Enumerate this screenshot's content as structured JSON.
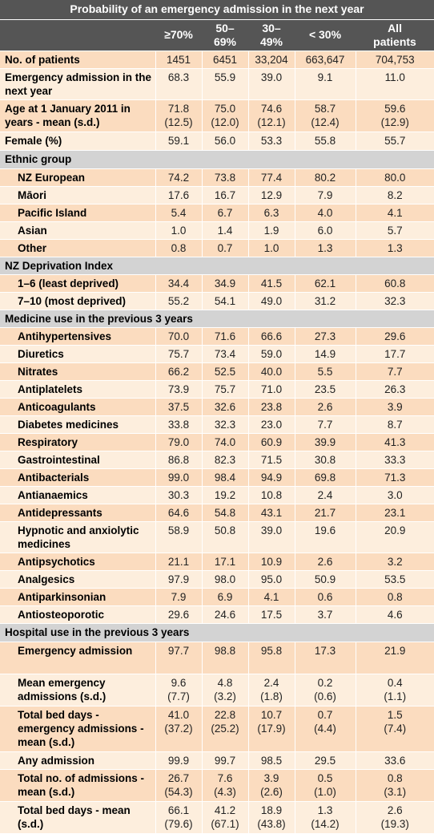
{
  "title": "Probability of an emergency admission in the next year",
  "columns": [
    "≥70%",
    "50–\n69%",
    "30–\n49%",
    "< 30%",
    "All\npatients"
  ],
  "rows": [
    {
      "type": "main",
      "label": "No. of patients",
      "values": [
        "1451",
        "6451",
        "33,204",
        "663,647",
        "704,753"
      ],
      "h": 22
    },
    {
      "type": "main",
      "label": "Emergency admission in the next year",
      "values": [
        "68.3",
        "55.9",
        "39.0",
        "9.1",
        "11.0"
      ],
      "h": 39
    },
    {
      "type": "main",
      "label": "Age at 1 January 2011 in years - mean (s.d.)",
      "values": [
        "71.8\n(12.5)",
        "75.0\n(12.0)",
        "74.6\n(12.1)",
        "58.7\n(12.4)",
        "59.6\n(12.9)"
      ],
      "h": 40
    },
    {
      "type": "main",
      "label": "Female (%)",
      "values": [
        "59.1",
        "56.0",
        "53.3",
        "55.8",
        "55.7"
      ],
      "h": 23
    },
    {
      "type": "section",
      "label": "Ethnic group",
      "h": 23
    },
    {
      "type": "sub",
      "label": "NZ European",
      "values": [
        "74.2",
        "73.8",
        "77.4",
        "80.2",
        "80.0"
      ],
      "h": 22
    },
    {
      "type": "sub",
      "label": "Māori",
      "values": [
        "17.6",
        "16.7",
        "12.9",
        "7.9",
        "8.2"
      ],
      "h": 22
    },
    {
      "type": "sub",
      "label": "Pacific Island",
      "values": [
        "5.4",
        "6.7",
        "6.3",
        "4.0",
        "4.1"
      ],
      "h": 22
    },
    {
      "type": "sub",
      "label": "Asian",
      "values": [
        "1.0",
        "1.4",
        "1.9",
        "6.0",
        "5.7"
      ],
      "h": 22
    },
    {
      "type": "sub",
      "label": "Other",
      "values": [
        "0.8",
        "0.7",
        "1.0",
        "1.3",
        "1.3"
      ],
      "h": 22
    },
    {
      "type": "section",
      "label": "NZ Deprivation Index",
      "h": 22
    },
    {
      "type": "sub",
      "label": "1–6 (least deprived)",
      "values": [
        "34.4",
        "34.9",
        "41.5",
        "62.1",
        "60.8"
      ],
      "h": 22
    },
    {
      "type": "sub",
      "label": "7–10 (most deprived)",
      "values": [
        "55.2",
        "54.1",
        "49.0",
        "31.2",
        "32.3"
      ],
      "h": 22
    },
    {
      "type": "section",
      "label": "Medicine use in the previous 3 years",
      "h": 22
    },
    {
      "type": "sub",
      "label": "Antihypertensives",
      "values": [
        "70.0",
        "71.6",
        "66.6",
        "27.3",
        "29.6"
      ],
      "h": 22
    },
    {
      "type": "sub",
      "label": "Diuretics",
      "values": [
        "75.7",
        "73.4",
        "59.0",
        "14.9",
        "17.7"
      ],
      "h": 22
    },
    {
      "type": "sub",
      "label": "Nitrates",
      "values": [
        "66.2",
        "52.5",
        "40.0",
        "5.5",
        "7.7"
      ],
      "h": 22
    },
    {
      "type": "sub",
      "label": "Antiplatelets",
      "values": [
        "73.9",
        "75.7",
        "71.0",
        "23.5",
        "26.3"
      ],
      "h": 22
    },
    {
      "type": "sub",
      "label": "Anticoagulants",
      "values": [
        "37.5",
        "32.6",
        "23.8",
        "2.6",
        "3.9"
      ],
      "h": 22
    },
    {
      "type": "sub",
      "label": "Diabetes medicines",
      "values": [
        "33.8",
        "32.3",
        "23.0",
        "7.7",
        "8.7"
      ],
      "h": 22
    },
    {
      "type": "sub",
      "label": "Respiratory",
      "values": [
        "79.0",
        "74.0",
        "60.9",
        "39.9",
        "41.3"
      ],
      "h": 22
    },
    {
      "type": "sub",
      "label": "Gastrointestinal",
      "values": [
        "86.8",
        "82.3",
        "71.5",
        "30.8",
        "33.3"
      ],
      "h": 22
    },
    {
      "type": "sub",
      "label": "Antibacterials",
      "values": [
        "99.0",
        "98.4",
        "94.9",
        "69.8",
        "71.3"
      ],
      "h": 22
    },
    {
      "type": "sub",
      "label": "Antianaemics",
      "values": [
        "30.3",
        "19.2",
        "10.8",
        "2.4",
        "3.0"
      ],
      "h": 22
    },
    {
      "type": "sub",
      "label": "Antidepressants",
      "values": [
        "64.6",
        "54.8",
        "43.1",
        "21.7",
        "23.1"
      ],
      "h": 22
    },
    {
      "type": "sub",
      "label": "Hypnotic and anxiolytic medicines",
      "values": [
        "58.9",
        "50.8",
        "39.0",
        "19.6",
        "20.9"
      ],
      "h": 39
    },
    {
      "type": "sub",
      "label": "Antipsychotics",
      "values": [
        "21.1",
        "17.1",
        "10.9",
        "2.6",
        "3.2"
      ],
      "h": 22
    },
    {
      "type": "sub",
      "label": "Analgesics",
      "values": [
        "97.9",
        "98.0",
        "95.0",
        "50.9",
        "53.5"
      ],
      "h": 22
    },
    {
      "type": "sub",
      "label": "Antiparkinsonian",
      "values": [
        "7.9",
        "6.9",
        "4.1",
        "0.6",
        "0.8"
      ],
      "h": 22
    },
    {
      "type": "sub",
      "label": "Antiosteoporotic",
      "values": [
        "29.6",
        "24.6",
        "17.5",
        "3.7",
        "4.6"
      ],
      "h": 22
    },
    {
      "type": "section",
      "label": "Hospital use in the previous 3 years",
      "h": 23
    },
    {
      "type": "sub",
      "label": "Emergency admission",
      "values": [
        "97.7",
        "98.8",
        "95.8",
        "17.3",
        "21.9"
      ],
      "h": 40
    },
    {
      "type": "sub",
      "label": "Mean emergency admissions (s.d.)",
      "values": [
        "9.6\n(7.7)",
        "4.8\n(3.2)",
        "2.4\n(1.8)",
        "0.2\n(0.6)",
        "0.4\n(1.1)"
      ],
      "h": 40
    },
    {
      "type": "sub",
      "label": "Total bed days - emergency admissions - mean (s.d.)",
      "values": [
        "41.0\n(37.2)",
        "22.8\n(25.2)",
        "10.7\n(17.9)",
        "0.7\n(4.4)",
        "1.5\n(7.4)"
      ],
      "h": 57
    },
    {
      "type": "sub",
      "label": "Any admission",
      "values": [
        "99.9",
        "99.7",
        "98.5",
        "29.5",
        "33.6"
      ],
      "h": 22
    },
    {
      "type": "sub",
      "label": "Total no. of admissions - mean (s.d.)",
      "values": [
        "26.7\n(54.3)",
        "7.6\n(4.3)",
        "3.9\n(2.6)",
        "0.5\n(1.0)",
        "0.8\n(3.1)"
      ],
      "h": 40
    },
    {
      "type": "sub",
      "label": "Total bed days - mean (s.d.)",
      "values": [
        "66.1\n(79.6)",
        "41.2\n(67.1)",
        "18.9\n(43.8)",
        "1.3\n(14.2)",
        "2.6\n(19.3)"
      ],
      "h": 40
    }
  ]
}
